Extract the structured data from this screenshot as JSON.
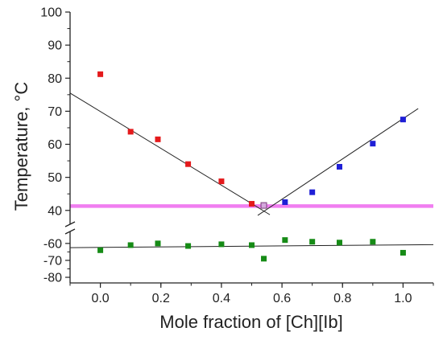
{
  "chart_data": {
    "type": "scatter",
    "xlabel": "Mole fraction of [Ch][Ib]",
    "ylabel": "Temperature, °C",
    "xlim": [
      -0.1,
      1.1
    ],
    "x_ticks": [
      "0.0",
      "0.2",
      "0.4",
      "0.6",
      "0.8",
      "1.0"
    ],
    "y_upper_range": [
      38,
      100
    ],
    "y_upper_ticks": [
      "40",
      "50",
      "60",
      "70",
      "80",
      "90",
      "100"
    ],
    "y_lower_range": [
      -80,
      -52
    ],
    "y_lower_ticks": [
      "-60",
      "-70",
      "-80"
    ],
    "y_axis_break": "between 38 and -52",
    "grid": false,
    "legend": "none",
    "series": [
      {
        "color": "#e41a1c",
        "marker": "square",
        "x": [
          0.0,
          0.1,
          0.19,
          0.29,
          0.4,
          0.5
        ],
        "y": [
          81.2,
          63.8,
          61.5,
          54.0,
          48.8,
          42.0
        ]
      },
      {
        "color": "#1f1fd6",
        "marker": "square",
        "x": [
          0.61,
          0.7,
          0.79,
          0.9,
          1.0
        ],
        "y": [
          42.5,
          45.5,
          53.2,
          60.2,
          67.5
        ]
      },
      {
        "color": "#d4a9dd",
        "edge_color": "#7a3d7a",
        "marker": "square",
        "x": [
          0.54
        ],
        "y": [
          41.5
        ]
      },
      {
        "color": "#168b16",
        "marker": "square",
        "x": [
          0.0,
          0.1,
          0.19,
          0.29,
          0.4,
          0.5,
          0.54,
          0.61,
          0.7,
          0.79,
          0.9,
          1.0
        ],
        "y": [
          -64,
          -61,
          -60,
          -61.5,
          -60.5,
          -61,
          -69,
          -58,
          -59,
          -59.5,
          -59,
          -65.5
        ]
      }
    ],
    "fit_lines": [
      {
        "color": "#222222",
        "x": [
          -0.1,
          0.56
        ],
        "y": [
          75.5,
          38.7
        ]
      },
      {
        "color": "#222222",
        "x": [
          0.52,
          1.05
        ],
        "y": [
          38.5,
          70.8
        ]
      },
      {
        "color": "#222222",
        "x": [
          -0.1,
          1.1
        ],
        "y": [
          -62.5,
          -60.7
        ]
      }
    ],
    "reference_lines": [
      {
        "color": "#f07ef0",
        "y": 41.3
      }
    ]
  }
}
